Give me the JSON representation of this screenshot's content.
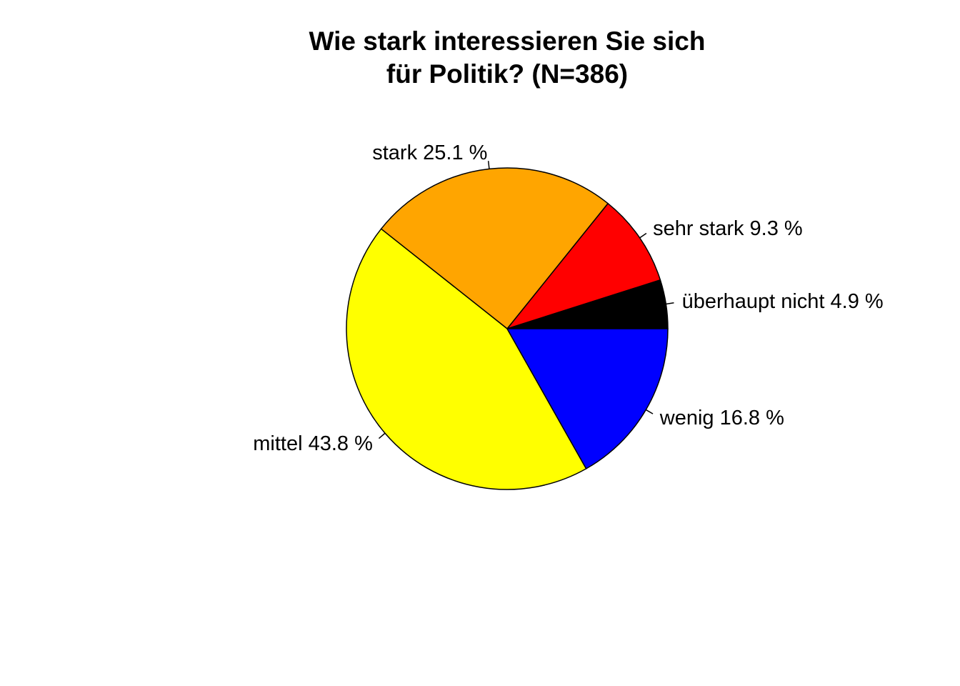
{
  "chart_data": {
    "type": "pie",
    "title_lines": [
      "Wie stark interessieren Sie sich",
      "für Politik? (N=386)"
    ],
    "slices": [
      {
        "category": "überhaupt nicht",
        "value": 4.9,
        "label": "überhaupt nicht 4.9 %",
        "color": "#000000"
      },
      {
        "category": "sehr stark",
        "value": 9.3,
        "label": "sehr stark 9.3 %",
        "color": "#ff0000"
      },
      {
        "category": "stark",
        "value": 25.1,
        "label": "stark 25.1 %",
        "color": "#ffa500"
      },
      {
        "category": "mittel",
        "value": 43.8,
        "label": "mittel 43.8 %",
        "color": "#ffff00"
      },
      {
        "category": "wenig",
        "value": 16.8,
        "label": "wenig 16.8 %",
        "color": "#0000ff"
      }
    ],
    "value_unit": "%",
    "start_angle_deg": 0,
    "direction": "counterclockwise",
    "legend": "none"
  }
}
